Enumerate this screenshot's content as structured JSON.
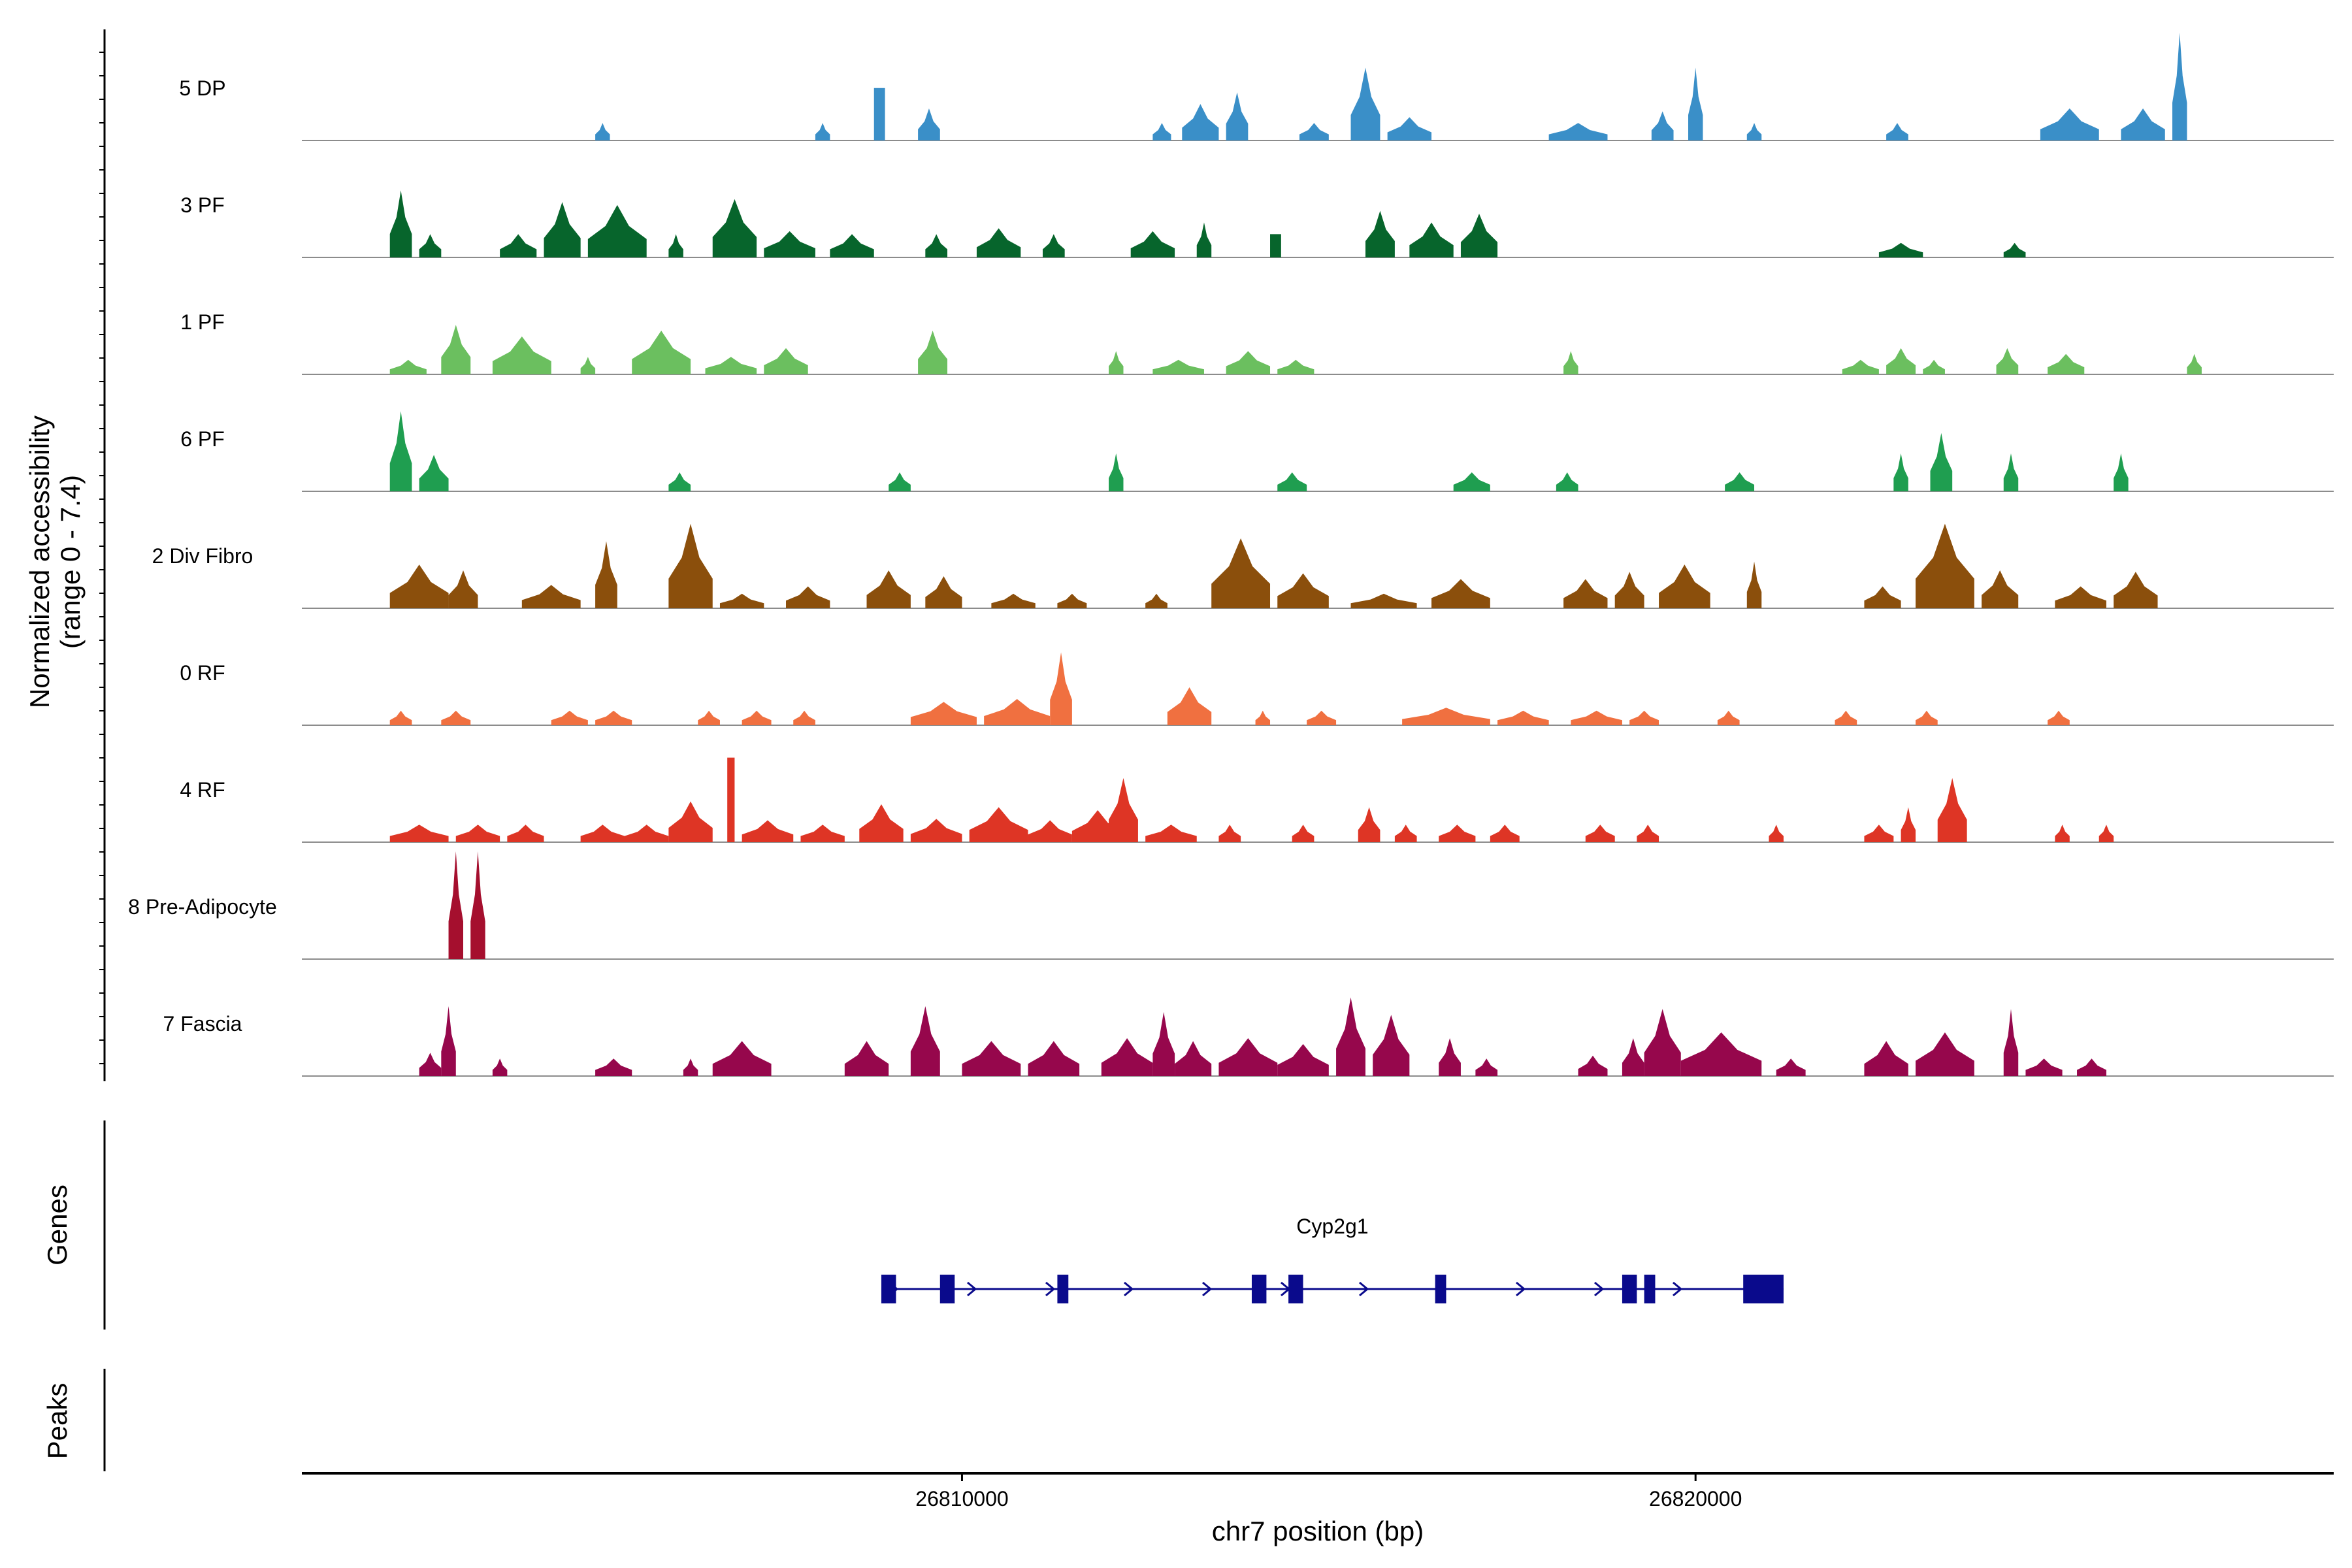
{
  "chart_data": {
    "type": "coverage",
    "chromosome": "chr7",
    "xlabel": "chr7 position (bp)",
    "ylabel_line1": "Normalized accessibility",
    "ylabel_line2": "(range 0 - 7.4)",
    "y_range": [
      0,
      7.4
    ],
    "x_range": [
      26801000,
      26828700
    ],
    "x_ticks": [
      {
        "value": 26810000,
        "label": "26810000"
      },
      {
        "value": 26820000,
        "label": "26820000"
      }
    ],
    "tracks": [
      {
        "name": "5 DP",
        "color": "#3A8FC8",
        "peaks": [
          [
            26805000,
            26805200,
            1.2
          ],
          [
            26808000,
            26808200,
            1.2
          ],
          [
            26808800,
            26808950,
            3.6
          ],
          [
            26809400,
            26809700,
            2.2
          ],
          [
            26812600,
            26812850,
            1.2
          ],
          [
            26813000,
            26813500,
            2.5
          ],
          [
            26813600,
            26813900,
            3.3
          ],
          [
            26814600,
            26815000,
            1.2
          ],
          [
            26815300,
            26815700,
            5.0
          ],
          [
            26815800,
            26816400,
            1.6
          ],
          [
            26818000,
            26818800,
            1.2
          ],
          [
            26819400,
            26819700,
            2.0
          ],
          [
            26819900,
            26820100,
            5.0
          ],
          [
            26820700,
            26820900,
            1.2
          ],
          [
            26822600,
            26822900,
            1.2
          ],
          [
            26824700,
            26825500,
            2.2
          ],
          [
            26825800,
            26826400,
            2.2
          ],
          [
            26826500,
            26826700,
            7.4
          ]
        ]
      },
      {
        "name": "3 PF",
        "color": "#07652C",
        "peaks": [
          [
            26802200,
            26802500,
            4.6
          ],
          [
            26802600,
            26802900,
            1.6
          ],
          [
            26803700,
            26804200,
            1.6
          ],
          [
            26804300,
            26804800,
            3.8
          ],
          [
            26804900,
            26805700,
            3.6
          ],
          [
            26806000,
            26806200,
            1.6
          ],
          [
            26806600,
            26807200,
            4.0
          ],
          [
            26807300,
            26808000,
            1.8
          ],
          [
            26808200,
            26808800,
            1.6
          ],
          [
            26809500,
            26809800,
            1.6
          ],
          [
            26810200,
            26810800,
            2.0
          ],
          [
            26811100,
            26811400,
            1.6
          ],
          [
            26812300,
            26812900,
            1.8
          ],
          [
            26813200,
            26813400,
            2.4
          ],
          [
            26814200,
            26814350,
            1.6
          ],
          [
            26815500,
            26815900,
            3.2
          ],
          [
            26816100,
            26816700,
            2.4
          ],
          [
            26816800,
            26817300,
            3.0
          ],
          [
            26822500,
            26823100,
            1.0
          ],
          [
            26824200,
            26824500,
            1.0
          ]
        ]
      },
      {
        "name": "1 PF",
        "color": "#6BBF5F",
        "peaks": [
          [
            26802200,
            26802700,
            1.0
          ],
          [
            26802900,
            26803300,
            3.4
          ],
          [
            26803600,
            26804400,
            2.6
          ],
          [
            26804800,
            26805000,
            1.2
          ],
          [
            26805500,
            26806300,
            3.0
          ],
          [
            26806500,
            26807200,
            1.2
          ],
          [
            26807300,
            26807900,
            1.8
          ],
          [
            26809400,
            26809800,
            3.0
          ],
          [
            26812000,
            26812200,
            1.6
          ],
          [
            26812600,
            26813300,
            1.0
          ],
          [
            26813600,
            26814200,
            1.6
          ],
          [
            26814300,
            26814800,
            1.0
          ],
          [
            26818200,
            26818400,
            1.6
          ],
          [
            26822000,
            26822500,
            1.0
          ],
          [
            26822600,
            26823000,
            1.8
          ],
          [
            26823100,
            26823400,
            1.0
          ],
          [
            26824100,
            26824400,
            1.8
          ],
          [
            26824800,
            26825300,
            1.4
          ],
          [
            26826700,
            26826900,
            1.4
          ]
        ]
      },
      {
        "name": "6 PF",
        "color": "#1F9E50",
        "peaks": [
          [
            26802200,
            26802500,
            5.5
          ],
          [
            26802600,
            26803000,
            2.5
          ],
          [
            26806000,
            26806300,
            1.3
          ],
          [
            26809000,
            26809300,
            1.3
          ],
          [
            26812000,
            26812200,
            2.6
          ],
          [
            26814300,
            26814700,
            1.3
          ],
          [
            26816700,
            26817200,
            1.3
          ],
          [
            26818100,
            26818400,
            1.3
          ],
          [
            26820400,
            26820800,
            1.3
          ],
          [
            26822700,
            26822900,
            2.6
          ],
          [
            26823200,
            26823500,
            4.0
          ],
          [
            26824200,
            26824400,
            2.6
          ],
          [
            26825700,
            26825900,
            2.6
          ]
        ]
      },
      {
        "name": "2 Div Fibro",
        "color": "#8B4F0C",
        "peaks": [
          [
            26802200,
            26803000,
            3.0
          ],
          [
            26803000,
            26803400,
            2.6
          ],
          [
            26804000,
            26804800,
            1.6
          ],
          [
            26805000,
            26805300,
            4.6
          ],
          [
            26806000,
            26806600,
            5.8
          ],
          [
            26806700,
            26807300,
            1.0
          ],
          [
            26807600,
            26808200,
            1.5
          ],
          [
            26808700,
            26809300,
            2.6
          ],
          [
            26809500,
            26810000,
            2.2
          ],
          [
            26810400,
            26811000,
            1.0
          ],
          [
            26811300,
            26811700,
            1.0
          ],
          [
            26812500,
            26812800,
            1.0
          ],
          [
            26813400,
            26814200,
            4.8
          ],
          [
            26814300,
            26815000,
            2.4
          ],
          [
            26815300,
            26816200,
            1.0
          ],
          [
            26816400,
            26817200,
            2.0
          ],
          [
            26818200,
            26818800,
            2.0
          ],
          [
            26818900,
            26819300,
            2.5
          ],
          [
            26819500,
            26820200,
            3.0
          ],
          [
            26820700,
            26820900,
            3.2
          ],
          [
            26822300,
            26822800,
            1.5
          ],
          [
            26823000,
            26823800,
            5.8
          ],
          [
            26823900,
            26824400,
            2.6
          ],
          [
            26824900,
            26825600,
            1.5
          ],
          [
            26825700,
            26826300,
            2.5
          ]
        ]
      },
      {
        "name": "0 RF",
        "color": "#F07040",
        "peaks": [
          [
            26802200,
            26802500,
            1.0
          ],
          [
            26802900,
            26803300,
            1.0
          ],
          [
            26804400,
            26804900,
            1.0
          ],
          [
            26805000,
            26805500,
            1.0
          ],
          [
            26806400,
            26806700,
            1.0
          ],
          [
            26807000,
            26807400,
            1.0
          ],
          [
            26807700,
            26808000,
            1.0
          ],
          [
            26809300,
            26810200,
            1.6
          ],
          [
            26810300,
            26811200,
            1.8
          ],
          [
            26811200,
            26811500,
            5.0
          ],
          [
            26812800,
            26813400,
            2.6
          ],
          [
            26814000,
            26814200,
            1.0
          ],
          [
            26814700,
            26815100,
            1.0
          ],
          [
            26816000,
            26817200,
            1.2
          ],
          [
            26817300,
            26818000,
            1.0
          ],
          [
            26818300,
            26819000,
            1.0
          ],
          [
            26819100,
            26819500,
            1.0
          ],
          [
            26820300,
            26820600,
            1.0
          ],
          [
            26821900,
            26822200,
            1.0
          ],
          [
            26823000,
            26823300,
            1.0
          ],
          [
            26824800,
            26825100,
            1.0
          ]
        ]
      },
      {
        "name": "4 RF",
        "color": "#DE3525",
        "peaks": [
          [
            26802200,
            26803000,
            1.2
          ],
          [
            26803100,
            26803700,
            1.2
          ],
          [
            26803800,
            26804300,
            1.2
          ],
          [
            26804800,
            26805400,
            1.2
          ],
          [
            26805400,
            26806000,
            1.2
          ],
          [
            26806000,
            26806600,
            2.8
          ],
          [
            26806800,
            26806900,
            5.8
          ],
          [
            26807000,
            26807700,
            1.5
          ],
          [
            26807800,
            26808400,
            1.2
          ],
          [
            26808600,
            26809200,
            2.6
          ],
          [
            26809300,
            26810000,
            1.6
          ],
          [
            26810100,
            26810900,
            2.4
          ],
          [
            26810900,
            26811500,
            1.5
          ],
          [
            26811500,
            26812200,
            2.2
          ],
          [
            26812000,
            26812400,
            4.4
          ],
          [
            26812500,
            26813200,
            1.2
          ],
          [
            26813500,
            26813800,
            1.2
          ],
          [
            26814500,
            26814800,
            1.2
          ],
          [
            26815400,
            26815700,
            2.4
          ],
          [
            26815900,
            26816200,
            1.2
          ],
          [
            26816500,
            26817000,
            1.2
          ],
          [
            26817200,
            26817600,
            1.2
          ],
          [
            26818500,
            26818900,
            1.2
          ],
          [
            26819200,
            26819500,
            1.2
          ],
          [
            26821000,
            26821200,
            1.2
          ],
          [
            26822300,
            26822700,
            1.2
          ],
          [
            26822800,
            26823000,
            2.4
          ],
          [
            26823300,
            26823700,
            4.4
          ],
          [
            26824900,
            26825100,
            1.2
          ],
          [
            26825500,
            26825700,
            1.2
          ]
        ]
      },
      {
        "name": "8 Pre-Adipocyte",
        "color": "#A50F2E",
        "peaks": [
          [
            26803000,
            26803200,
            7.4
          ],
          [
            26803300,
            26803500,
            7.4
          ]
        ]
      },
      {
        "name": "7 Fascia",
        "color": "#96074C",
        "peaks": [
          [
            26802600,
            26802900,
            1.6
          ],
          [
            26802900,
            26803100,
            4.8
          ],
          [
            26803600,
            26803800,
            1.2
          ],
          [
            26805000,
            26805500,
            1.2
          ],
          [
            26806200,
            26806400,
            1.2
          ],
          [
            26806600,
            26807400,
            2.4
          ],
          [
            26808400,
            26809000,
            2.4
          ],
          [
            26809300,
            26809700,
            4.8
          ],
          [
            26810000,
            26810800,
            2.4
          ],
          [
            26810900,
            26811600,
            2.4
          ],
          [
            26811900,
            26812600,
            2.6
          ],
          [
            26812600,
            26812900,
            4.4
          ],
          [
            26812900,
            26813400,
            2.4
          ],
          [
            26813500,
            26814300,
            2.6
          ],
          [
            26814300,
            26815000,
            2.2
          ],
          [
            26815100,
            26815500,
            5.4
          ],
          [
            26815600,
            26816100,
            4.2
          ],
          [
            26816500,
            26816800,
            2.6
          ],
          [
            26817000,
            26817300,
            1.2
          ],
          [
            26818400,
            26818800,
            1.4
          ],
          [
            26819000,
            26819300,
            2.6
          ],
          [
            26819300,
            26819800,
            4.6
          ],
          [
            26819800,
            26820900,
            3.0
          ],
          [
            26821100,
            26821500,
            1.2
          ],
          [
            26822300,
            26822900,
            2.4
          ],
          [
            26823000,
            26823800,
            3.0
          ],
          [
            26824200,
            26824400,
            4.6
          ],
          [
            26824500,
            26825000,
            1.2
          ],
          [
            26825200,
            26825600,
            1.2
          ]
        ]
      }
    ],
    "gene": {
      "name": "Cyp2g1",
      "start": 26808900,
      "end": 26821200,
      "strand": "+",
      "exons": [
        [
          26808900,
          26809100
        ],
        [
          26809700,
          26809900
        ],
        [
          26811300,
          26811450
        ],
        [
          26813950,
          26814150
        ],
        [
          26814450,
          26814650
        ],
        [
          26816450,
          26816600
        ],
        [
          26819000,
          26819200
        ],
        [
          26819300,
          26819450
        ],
        [
          26820650,
          26821200
        ]
      ]
    },
    "panel_labels": {
      "genes": "Genes",
      "peaks": "Peaks"
    }
  }
}
